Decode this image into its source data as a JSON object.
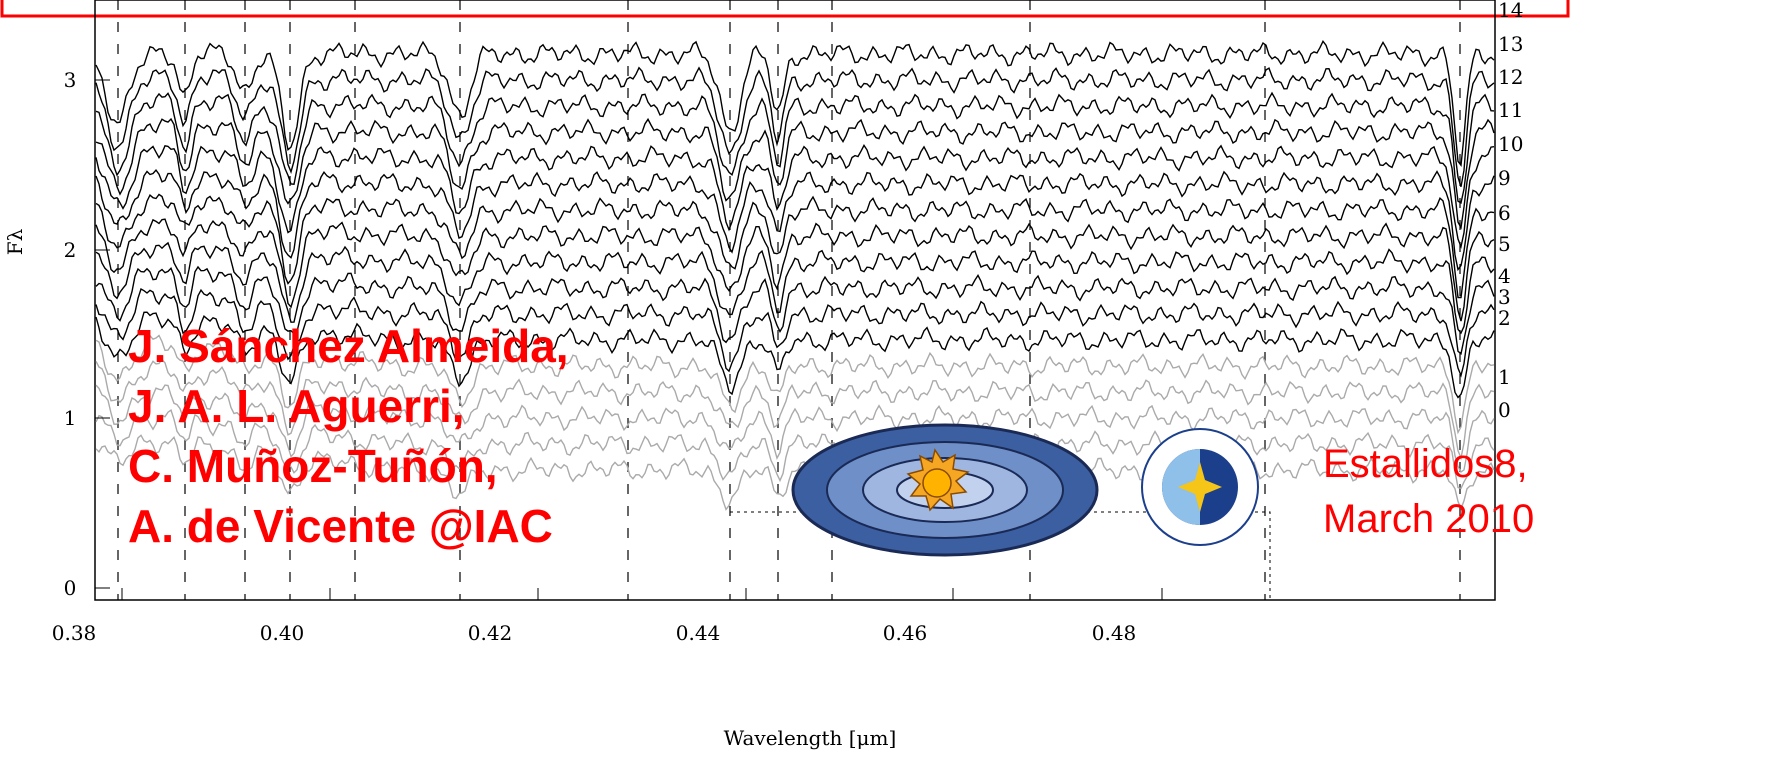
{
  "plot": {
    "y_axis_label": "Fλ",
    "x_axis_label": "Wavelength [μm]",
    "x_tick_labels": [
      "0.38",
      "0.40",
      "0.42",
      "0.44",
      "0.46",
      "0.48"
    ],
    "y_tick_labels": [
      "0",
      "1",
      "2",
      "3"
    ],
    "curve_labels": [
      "14",
      "13",
      "12",
      "11",
      "10",
      "9",
      "6",
      "5",
      "4",
      "3",
      "2",
      "1",
      "0"
    ]
  },
  "authors": [
    "J. Sánchez Almeida,",
    "J. A. L. Aguerri,",
    "C. Muñoz-Tuñón,",
    "A. de Vicente @IAC"
  ],
  "event": [
    "Estallidos8,",
    "March 2010"
  ]
}
